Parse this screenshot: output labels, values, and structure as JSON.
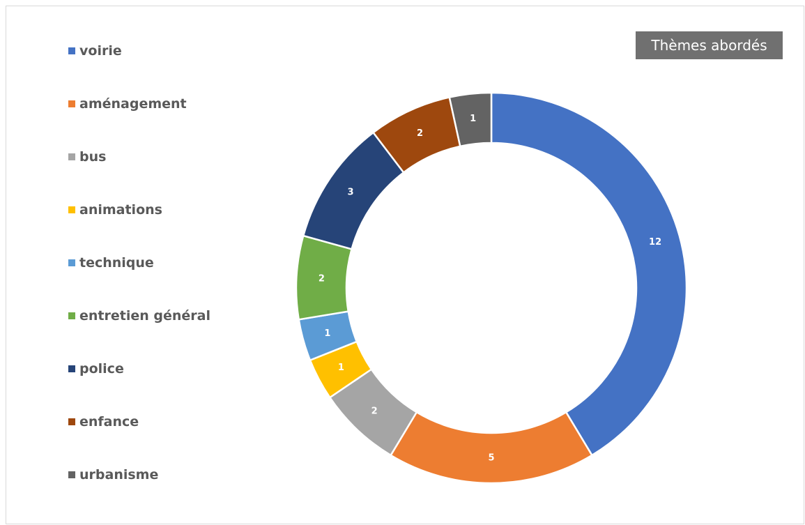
{
  "chart_data": {
    "type": "pie",
    "variant": "donut",
    "title": "Thèmes abordés",
    "legend_position": "left",
    "categories": [
      "voirie",
      "aménagement",
      "bus",
      "animations",
      "technique",
      "entretien général",
      "police",
      "enfance",
      "urbanisme"
    ],
    "values": [
      12,
      5,
      2,
      1,
      1,
      2,
      3,
      2,
      1
    ],
    "colors": [
      "#4472C4",
      "#ED7D31",
      "#A5A5A5",
      "#FFC000",
      "#5B9BD5",
      "#70AD47",
      "#264478",
      "#9E480E",
      "#636363"
    ],
    "data_labels": [
      "12",
      "5",
      "2",
      "1",
      "1",
      "2",
      "3",
      "2",
      "1"
    ]
  }
}
